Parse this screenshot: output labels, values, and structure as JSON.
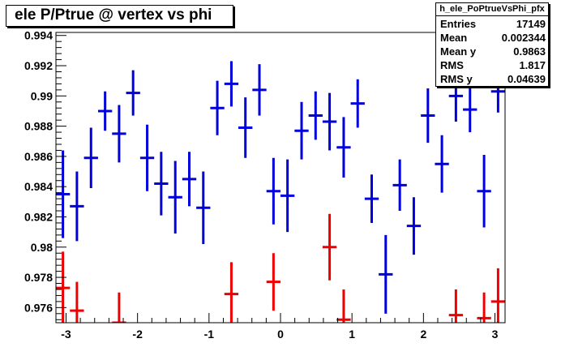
{
  "title": "ele P/Ptrue @ vertex vs phi",
  "stats": {
    "name": "h_ele_PoPtrueVsPhi_pfx",
    "rows": [
      {
        "label": "Entries",
        "value": "17149"
      },
      {
        "label": "Mean",
        "value": "0.002344"
      },
      {
        "label": "Mean y",
        "value": "0.9863"
      },
      {
        "label": "RMS",
        "value": "1.817"
      },
      {
        "label": "RMS y",
        "value": "0.04639"
      }
    ]
  },
  "chart_data": {
    "type": "scatter",
    "title": "ele P/Ptrue @ vertex vs phi",
    "xlabel": "",
    "ylabel": "",
    "xlim": [
      -3.1416,
      3.1416
    ],
    "ylim": [
      0.975,
      0.9942
    ],
    "x_ticks": [
      "-3",
      "-2",
      "-1",
      "0",
      "1",
      "2",
      "3"
    ],
    "y_ticks": [
      "0.976",
      "0.978",
      "0.98",
      "0.982",
      "0.984",
      "0.986",
      "0.988",
      "0.99",
      "0.992",
      "0.994"
    ],
    "grid": false,
    "colors": {
      "high": "#0000dd",
      "low": "#ee0000"
    },
    "bin_half_width": 0.0982,
    "series": [
      {
        "color_key": "high",
        "points": [
          {
            "x": -3.044,
            "y": 0.9835,
            "err": 0.0029
          },
          {
            "x": -2.848,
            "y": 0.9827,
            "err": 0.0023
          },
          {
            "x": -2.651,
            "y": 0.9859,
            "err": 0.002
          },
          {
            "x": -2.454,
            "y": 0.989,
            "err": 0.0013
          },
          {
            "x": -2.258,
            "y": 0.9875,
            "err": 0.0019
          },
          {
            "x": -2.062,
            "y": 0.9902,
            "err": 0.0015
          },
          {
            "x": -1.865,
            "y": 0.9859,
            "err": 0.0022
          },
          {
            "x": -1.669,
            "y": 0.9842,
            "err": 0.0021
          },
          {
            "x": -1.472,
            "y": 0.9833,
            "err": 0.0024
          },
          {
            "x": -1.276,
            "y": 0.9845,
            "err": 0.0018
          },
          {
            "x": -1.08,
            "y": 0.9826,
            "err": 0.0024
          },
          {
            "x": -0.884,
            "y": 0.9892,
            "err": 0.0018
          },
          {
            "x": -0.687,
            "y": 0.9908,
            "err": 0.0015
          },
          {
            "x": -0.491,
            "y": 0.9879,
            "err": 0.002
          },
          {
            "x": -0.295,
            "y": 0.9904,
            "err": 0.0017
          },
          {
            "x": -0.098,
            "y": 0.9837,
            "err": 0.0022
          },
          {
            "x": 0.098,
            "y": 0.9834,
            "err": 0.0024
          },
          {
            "x": 0.295,
            "y": 0.9877,
            "err": 0.0019
          },
          {
            "x": 0.491,
            "y": 0.9887,
            "err": 0.0016
          },
          {
            "x": 0.687,
            "y": 0.9883,
            "err": 0.0019
          },
          {
            "x": 0.884,
            "y": 0.9866,
            "err": 0.002
          },
          {
            "x": 1.08,
            "y": 0.9895,
            "err": 0.0016
          },
          {
            "x": 1.276,
            "y": 0.9832,
            "err": 0.0016
          },
          {
            "x": 1.472,
            "y": 0.9782,
            "err": 0.0026
          },
          {
            "x": 1.669,
            "y": 0.9841,
            "err": 0.0017
          },
          {
            "x": 1.865,
            "y": 0.9814,
            "err": 0.0019
          },
          {
            "x": 2.062,
            "y": 0.9887,
            "err": 0.0018
          },
          {
            "x": 2.258,
            "y": 0.9855,
            "err": 0.0019
          },
          {
            "x": 2.454,
            "y": 0.99,
            "err": 0.0017
          },
          {
            "x": 2.651,
            "y": 0.9891,
            "err": 0.0015
          },
          {
            "x": 2.848,
            "y": 0.9837,
            "err": 0.0024
          },
          {
            "x": 3.044,
            "y": 0.9903,
            "err": 0.0014
          }
        ]
      },
      {
        "color_key": "low",
        "points": [
          {
            "x": -3.044,
            "y": 0.9773,
            "err": 0.0024
          },
          {
            "x": -2.848,
            "y": 0.9758,
            "err": 0.0019
          },
          {
            "x": -2.258,
            "y": 0.975,
            "err": 0.002
          },
          {
            "x": -0.687,
            "y": 0.9769,
            "err": 0.0021
          },
          {
            "x": -0.098,
            "y": 0.9777,
            "err": 0.0019
          },
          {
            "x": 0.687,
            "y": 0.98,
            "err": 0.0022
          },
          {
            "x": 0.884,
            "y": 0.9752,
            "err": 0.002
          },
          {
            "x": 2.454,
            "y": 0.9755,
            "err": 0.0017
          },
          {
            "x": 2.848,
            "y": 0.9753,
            "err": 0.0017
          },
          {
            "x": 3.044,
            "y": 0.9764,
            "err": 0.0022
          }
        ]
      }
    ]
  }
}
